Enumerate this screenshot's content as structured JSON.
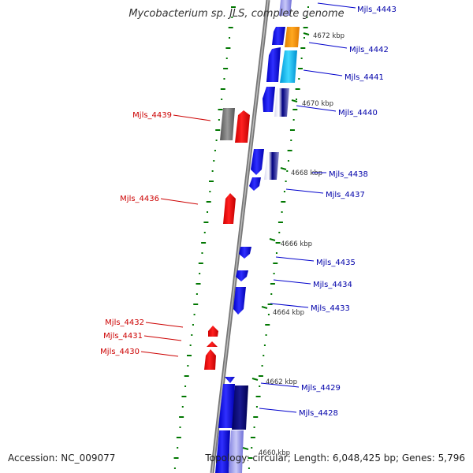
{
  "title": "Mycobacterium sp. JLS, complete genome",
  "footer": {
    "accession": "Accession: NC_009077",
    "summary": "Topology: circular; Length: 6,048,425 bp; Genes: 5,796"
  },
  "colors": {
    "plus_strand": "#ff0000",
    "minus_strand": "#0000ee",
    "dark_blue": "#000080",
    "orange": "#ff9a00",
    "cyan": "#00c0f0",
    "grey": "#777777",
    "backbone": "#888888",
    "gc_marks": "#007700",
    "right_label": "#0000aa",
    "left_label": "#cc0000"
  },
  "kbp_ticks": [
    "4672 kbp",
    "4670 kbp",
    "4668 kbp",
    "4666 kbp",
    "4664 kbp",
    "4662 kbp",
    "4660 kbp"
  ],
  "genes_right": [
    "Mjls_4443",
    "Mjls_4442",
    "Mjls_4441",
    "Mjls_4440",
    "Mjls_4438",
    "Mjls_4437",
    "Mjls_4435",
    "Mjls_4434",
    "Mjls_4433",
    "Mjls_4429",
    "Mjls_4428"
  ],
  "genes_left": [
    "Mjls_4439",
    "Mjls_4436",
    "Mjls_4432",
    "Mjls_4431",
    "Mjls_4430"
  ]
}
